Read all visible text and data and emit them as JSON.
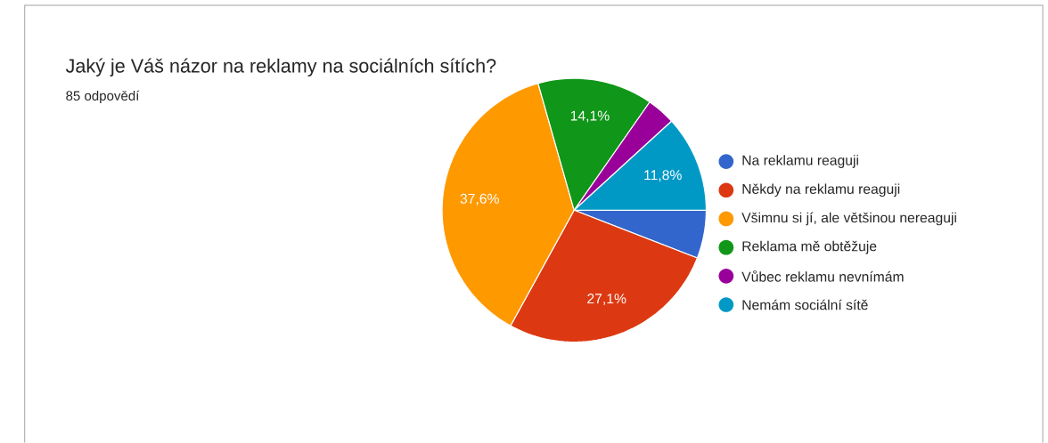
{
  "chart_data": {
    "type": "pie",
    "title": "Jaký je Váš názor na reklamy na sociálních sítích?",
    "subtitle": "85 odpovědí",
    "categories": [
      "Na reklamu reaguji",
      "Někdy na reklamu reaguji",
      "Všimnu si jí, ale většinou nereaguji",
      "Reklama mě obtěžuje",
      "Vůbec reklamu nevnímám",
      "Nemám sociální sítě"
    ],
    "values": [
      5.9,
      27.1,
      37.6,
      14.1,
      3.5,
      11.8
    ],
    "colors": [
      "#3366cc",
      "#dc3912",
      "#ff9900",
      "#109618",
      "#990099",
      "#0099c6"
    ],
    "value_labels": [
      null,
      "27,1%",
      "37,6%",
      "14,1%",
      null,
      "11,8%"
    ],
    "legend": "right"
  }
}
